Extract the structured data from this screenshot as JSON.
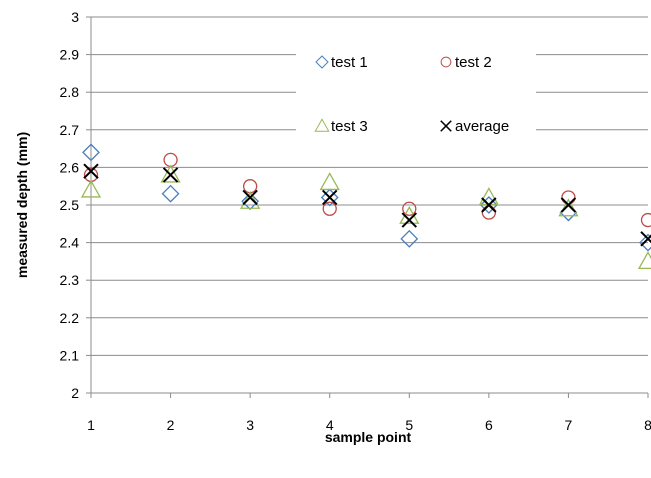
{
  "chart_data": {
    "type": "scatter",
    "title": "",
    "xlabel": "sample point",
    "ylabel": "measured depth (mm)",
    "xlim": [
      1,
      8
    ],
    "ylim": [
      2,
      3
    ],
    "x_ticks": [
      "1",
      "2",
      "3",
      "4",
      "5",
      "6",
      "7",
      "8"
    ],
    "y_ticks": [
      "2",
      "2.1",
      "2.2",
      "2.3",
      "2.4",
      "2.5",
      "2.6",
      "2.7",
      "2.8",
      "2.9",
      "3"
    ],
    "grid": true,
    "legend_position": "top-center (inside plot)",
    "x": [
      1,
      2,
      3,
      4,
      5,
      6,
      7,
      8
    ],
    "series": [
      {
        "name": "test 1",
        "marker": "diamond",
        "color": "#4a7ebb",
        "values": [
          2.64,
          2.53,
          2.51,
          2.52,
          2.41,
          2.5,
          2.48,
          2.4
        ]
      },
      {
        "name": "test 2",
        "marker": "circle",
        "color": "#be4b48",
        "values": [
          2.58,
          2.62,
          2.55,
          2.49,
          2.49,
          2.48,
          2.52,
          2.46
        ]
      },
      {
        "name": "test 3",
        "marker": "triangle",
        "color": "#98b954",
        "values": [
          2.54,
          2.58,
          2.51,
          2.56,
          2.47,
          2.52,
          2.49,
          2.35
        ]
      },
      {
        "name": "average",
        "marker": "x",
        "color": "#000000",
        "values": [
          2.59,
          2.58,
          2.52,
          2.52,
          2.46,
          2.5,
          2.5,
          2.41
        ]
      }
    ]
  }
}
